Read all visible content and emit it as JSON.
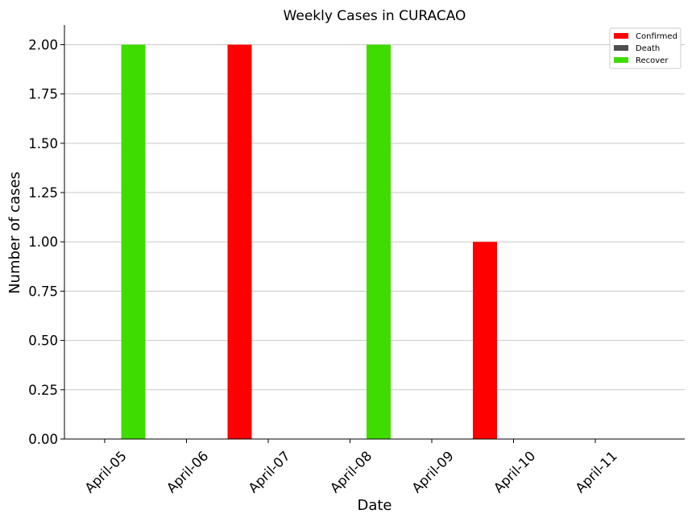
{
  "chart_data": {
    "type": "bar",
    "title": "Weekly Cases in CURACAO",
    "xlabel": "Date",
    "ylabel": "Number of cases",
    "categories": [
      "April-05",
      "April-06",
      "April-07",
      "April-08",
      "April-09",
      "April-10",
      "April-11"
    ],
    "series": [
      {
        "name": "Confirmed",
        "color": "#ff0000",
        "values": [
          0,
          0,
          2,
          0,
          0,
          1,
          0
        ]
      },
      {
        "name": "Death",
        "color": "#4d4d4d",
        "values": [
          0,
          0,
          0,
          0,
          0,
          0,
          0
        ]
      },
      {
        "name": "Recover",
        "color": "#3fdc00",
        "values": [
          2,
          0,
          0,
          2,
          0,
          0,
          0
        ]
      }
    ],
    "ylim": [
      0,
      2.1
    ],
    "yticks": [
      "0.00",
      "0.25",
      "0.50",
      "0.75",
      "1.00",
      "1.25",
      "1.50",
      "1.75",
      "2.00"
    ],
    "grid": "horizontal",
    "legend_position": "top-right"
  }
}
